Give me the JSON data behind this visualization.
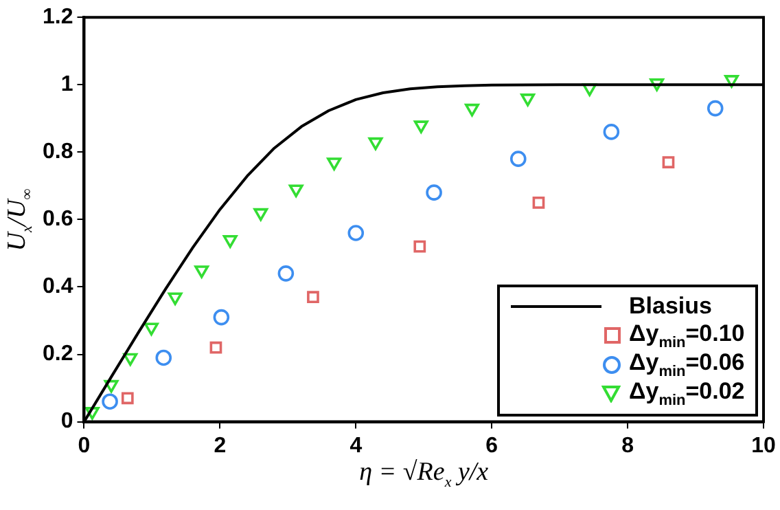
{
  "chart_data": {
    "type": "scatter",
    "xlabel": "η = √Re$_{x}$ y/x",
    "ylabel": "U$_{x}$/U$_{∞}$",
    "xlim": [
      0,
      10
    ],
    "xticks": [
      0,
      2,
      4,
      6,
      8,
      10
    ],
    "ylim": [
      0,
      1.2
    ],
    "yticks": [
      0,
      0.2,
      0.4,
      0.6,
      0.8,
      1,
      1.2
    ],
    "grid": false,
    "legend": "bottom right",
    "series": [
      {
        "name": "Blasius",
        "type": "line",
        "marker": "none",
        "line_style": "solid",
        "color": "#000000",
        "x": [
          0,
          0.4,
          0.8,
          1.2,
          1.6,
          2.0,
          2.4,
          2.8,
          3.2,
          3.6,
          4.0,
          4.4,
          4.8,
          5.2,
          5.6,
          6.0,
          7.0,
          8.0,
          10.0
        ],
        "values": [
          0,
          0.133,
          0.265,
          0.394,
          0.517,
          0.63,
          0.729,
          0.812,
          0.876,
          0.923,
          0.956,
          0.976,
          0.988,
          0.994,
          0.997,
          0.999,
          1,
          1,
          1
        ]
      },
      {
        "name": "Δy$_{min}$=0.10",
        "marker": "square",
        "color": "#e06666",
        "x": [
          0.64,
          1.94,
          3.37,
          4.94,
          6.69,
          8.6
        ],
        "values": [
          0.07,
          0.22,
          0.37,
          0.52,
          0.65,
          0.77
        ]
      },
      {
        "name": "Δy$_{min}$=0.06",
        "marker": "circle",
        "color": "#3d8ef0",
        "x": [
          0.38,
          1.17,
          2.02,
          2.97,
          4.0,
          5.15,
          6.39,
          7.76,
          9.29
        ],
        "values": [
          0.06,
          0.19,
          0.31,
          0.44,
          0.56,
          0.68,
          0.78,
          0.86,
          0.93
        ]
      },
      {
        "name": "Δy$_{min}$=0.02",
        "marker": "triangle",
        "color": "#33dd33",
        "x": [
          0.12,
          0.4,
          0.68,
          0.99,
          1.34,
          1.73,
          2.15,
          2.6,
          3.12,
          3.68,
          4.29,
          4.96,
          5.71,
          6.53,
          7.44,
          8.43,
          9.53
        ],
        "values": [
          0.03,
          0.11,
          0.19,
          0.28,
          0.37,
          0.45,
          0.54,
          0.62,
          0.69,
          0.77,
          0.83,
          0.88,
          0.93,
          0.96,
          0.99,
          1.005,
          1.015
        ]
      }
    ]
  }
}
